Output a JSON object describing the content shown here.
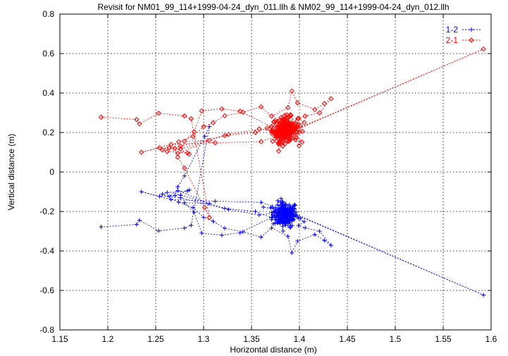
{
  "chart_data": {
    "type": "scatter",
    "title": "Revisit for NM01_99_114+1999-04-24_dyn_011.llh & NM02_99_114+1999-04-24_dyn_012.llh",
    "xlabel": "Horizontal distance (m)",
    "ylabel": "Vertical distance (m)",
    "xlim": [
      1.15,
      1.6
    ],
    "ylim": [
      -0.8,
      0.8
    ],
    "xticks": [
      "1.15",
      "1.2",
      "1.25",
      "1.3",
      "1.35",
      "1.4",
      "1.45",
      "1.5",
      "1.55",
      "1.6"
    ],
    "yticks": [
      "-0.8",
      "-0.6",
      "-0.4",
      "-0.2",
      "0",
      "0.2",
      "0.4",
      "0.6",
      "0.8"
    ],
    "xtick_values": [
      1.15,
      1.2,
      1.25,
      1.3,
      1.35,
      1.4,
      1.45,
      1.5,
      1.55,
      1.6
    ],
    "ytick_values": [
      -0.8,
      -0.6,
      -0.4,
      -0.2,
      0,
      0.2,
      0.4,
      0.6,
      0.8
    ],
    "grid": true,
    "legend_position": "top-right",
    "series": [
      {
        "name": "1-2",
        "color": "#0000ff",
        "marker": "plus",
        "connected": true,
        "cluster_center": [
          1.385,
          -0.215
        ],
        "x": [
          1.193,
          1.23,
          1.233,
          1.253,
          1.28,
          1.287,
          1.306,
          1.301,
          1.28,
          1.273,
          1.27,
          1.285,
          1.283,
          1.262,
          1.257,
          1.274,
          1.289,
          1.3,
          1.31,
          1.322,
          1.341,
          1.36,
          1.371,
          1.388,
          1.392,
          1.398,
          1.416,
          1.426,
          1.433,
          1.421,
          1.406,
          1.399,
          1.405,
          1.393,
          1.371,
          1.338,
          1.319,
          1.298,
          1.29,
          1.28,
          1.306,
          1.273,
          1.264,
          1.276,
          1.326,
          1.358,
          1.391,
          1.401,
          1.385,
          1.592,
          1.392,
          1.36,
          1.312,
          1.266,
          1.235,
          1.254,
          1.276,
          1.322,
          1.354,
          1.371,
          1.382,
          1.39,
          1.38,
          1.396,
          1.371
        ],
        "y": [
          -0.278,
          -0.266,
          -0.244,
          -0.298,
          -0.284,
          -0.27,
          0.23,
          0.18,
          -0.02,
          -0.075,
          -0.12,
          -0.091,
          -0.096,
          -0.104,
          -0.112,
          -0.153,
          -0.18,
          -0.23,
          -0.25,
          -0.285,
          -0.303,
          -0.33,
          -0.283,
          -0.326,
          -0.41,
          -0.35,
          -0.317,
          -0.347,
          -0.372,
          -0.3,
          -0.283,
          -0.271,
          -0.251,
          -0.224,
          -0.229,
          -0.308,
          -0.32,
          -0.31,
          -0.204,
          -0.156,
          -0.16,
          -0.094,
          -0.123,
          -0.131,
          -0.19,
          -0.218,
          -0.196,
          -0.235,
          -0.19,
          -0.623,
          -0.208,
          -0.154,
          -0.148,
          -0.14,
          -0.1,
          -0.123,
          -0.117,
          -0.184,
          -0.2,
          -0.231,
          -0.153,
          -0.209,
          -0.242,
          -0.221,
          -0.205
        ]
      },
      {
        "name": "2-1",
        "color": "#ff0000",
        "marker": "diamond",
        "connected": true,
        "cluster_center": [
          1.385,
          0.215
        ],
        "x": [
          1.193,
          1.23,
          1.233,
          1.253,
          1.28,
          1.287,
          1.306,
          1.301,
          1.28,
          1.273,
          1.27,
          1.285,
          1.283,
          1.262,
          1.257,
          1.274,
          1.289,
          1.3,
          1.31,
          1.322,
          1.341,
          1.36,
          1.371,
          1.388,
          1.392,
          1.398,
          1.416,
          1.426,
          1.433,
          1.421,
          1.406,
          1.399,
          1.405,
          1.393,
          1.371,
          1.338,
          1.319,
          1.298,
          1.29,
          1.28,
          1.306,
          1.273,
          1.264,
          1.276,
          1.326,
          1.358,
          1.391,
          1.401,
          1.385,
          1.592,
          1.392,
          1.36,
          1.312,
          1.266,
          1.235,
          1.254,
          1.276,
          1.322,
          1.354,
          1.371,
          1.382,
          1.39,
          1.38,
          1.396,
          1.371
        ],
        "y": [
          0.278,
          0.266,
          0.244,
          0.298,
          0.284,
          0.27,
          -0.23,
          -0.18,
          0.02,
          0.075,
          0.12,
          0.091,
          0.096,
          0.104,
          0.112,
          0.153,
          0.18,
          0.23,
          0.25,
          0.285,
          0.303,
          0.33,
          0.283,
          0.326,
          0.41,
          0.35,
          0.317,
          0.347,
          0.372,
          0.3,
          0.283,
          0.271,
          0.251,
          0.224,
          0.229,
          0.308,
          0.32,
          0.31,
          0.204,
          0.156,
          0.16,
          0.094,
          0.123,
          0.131,
          0.19,
          0.218,
          0.196,
          0.235,
          0.19,
          0.623,
          0.208,
          0.154,
          0.148,
          0.14,
          0.1,
          0.123,
          0.117,
          0.184,
          0.2,
          0.231,
          0.153,
          0.209,
          0.242,
          0.221,
          0.205
        ]
      }
    ]
  }
}
